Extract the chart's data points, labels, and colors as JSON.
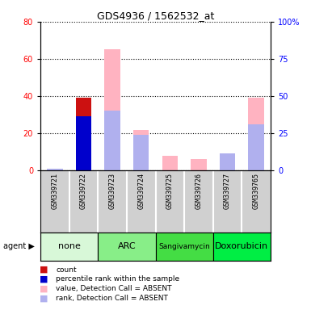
{
  "title": "GDS4936 / 1562532_at",
  "samples": [
    "GSM339721",
    "GSM339722",
    "GSM339723",
    "GSM339724",
    "GSM339725",
    "GSM339726",
    "GSM339727",
    "GSM339765"
  ],
  "agent_groups": [
    {
      "label": "none",
      "start": 0,
      "end": 1,
      "color": "#d8f8d8"
    },
    {
      "label": "ARC",
      "start": 2,
      "end": 3,
      "color": "#88ee88"
    },
    {
      "label": "Sangivamycin",
      "start": 4,
      "end": 5,
      "color": "#44dd44"
    },
    {
      "label": "Doxorubicin",
      "start": 6,
      "end": 7,
      "color": "#00ee44"
    }
  ],
  "count_values": [
    0,
    39,
    0,
    0,
    0,
    0,
    0,
    0
  ],
  "percentile_values": [
    0,
    29,
    0,
    0,
    0,
    0,
    0,
    0
  ],
  "value_absent": [
    0,
    0,
    65,
    22,
    8,
    6,
    0,
    39
  ],
  "rank_absent": [
    1,
    0,
    32,
    19,
    0,
    0,
    9,
    25
  ],
  "ylim_left": [
    0,
    80
  ],
  "ylim_right": [
    0,
    100
  ],
  "left_ticks": [
    0,
    20,
    40,
    60,
    80
  ],
  "right_ticks": [
    0,
    25,
    50,
    75,
    100
  ],
  "right_tick_labels": [
    "0",
    "25",
    "50",
    "75",
    "100%"
  ],
  "color_count": "#cc1111",
  "color_percentile": "#0000cc",
  "color_value_absent": "#ffb3c1",
  "color_rank_absent": "#b0b0ee",
  "bar_width": 0.55,
  "gsm_bg_color": "#d0d0d0",
  "legend_items": [
    {
      "color": "#cc1111",
      "label": "count"
    },
    {
      "color": "#0000cc",
      "label": "percentile rank within the sample"
    },
    {
      "color": "#ffb3c1",
      "label": "value, Detection Call = ABSENT"
    },
    {
      "color": "#b0b0ee",
      "label": "rank, Detection Call = ABSENT"
    }
  ]
}
